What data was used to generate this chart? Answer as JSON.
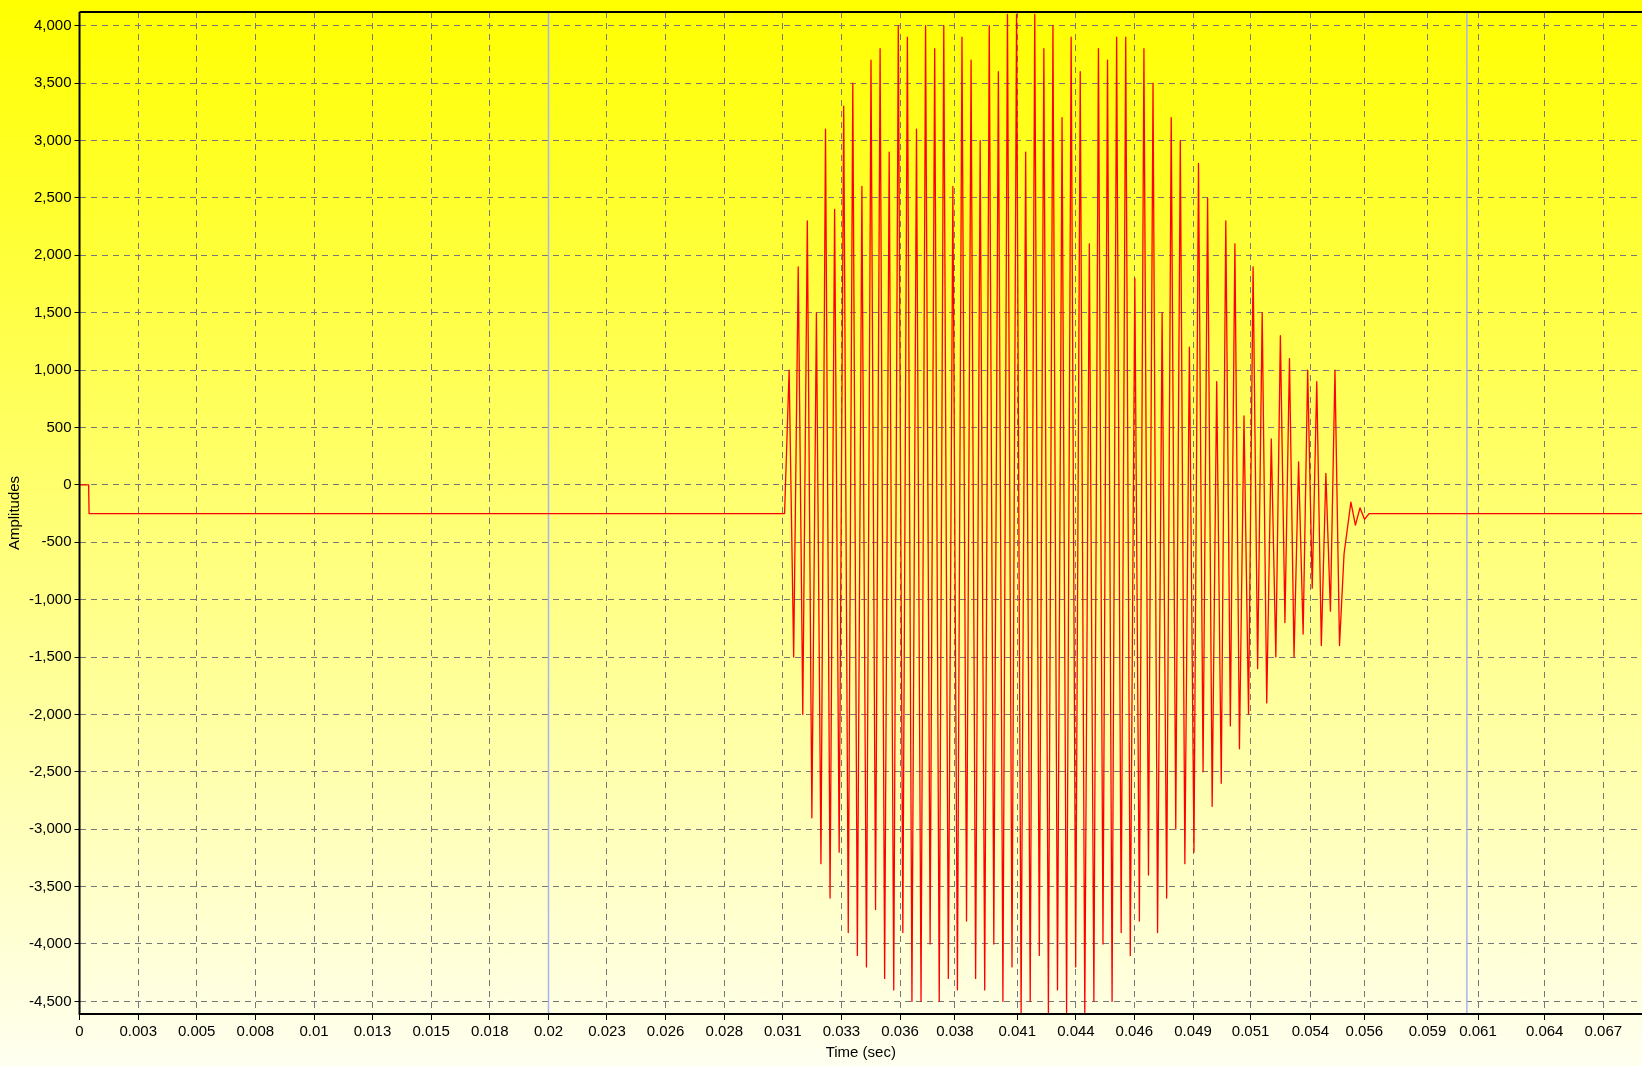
{
  "chart_data": {
    "type": "line",
    "xlabel": "Time (sec)",
    "ylabel": "Amplitudes",
    "grid": true,
    "legend": false,
    "marker": "none",
    "line_style": "solid",
    "xlim": [
      0,
      0.0687
    ],
    "ylim": [
      -4610,
      4120
    ],
    "xticks": [
      {
        "value": 0,
        "label": "0"
      },
      {
        "value": 0.00258,
        "label": "0.003"
      },
      {
        "value": 0.00515,
        "label": "0.005"
      },
      {
        "value": 0.00773,
        "label": "0.008"
      },
      {
        "value": 0.01031,
        "label": "0.01"
      },
      {
        "value": 0.01288,
        "label": "0.013"
      },
      {
        "value": 0.01546,
        "label": "0.015"
      },
      {
        "value": 0.01804,
        "label": "0.018"
      },
      {
        "value": 0.02062,
        "label": "0.02"
      },
      {
        "value": 0.02319,
        "label": "0.023"
      },
      {
        "value": 0.02577,
        "label": "0.026"
      },
      {
        "value": 0.02835,
        "label": "0.028"
      },
      {
        "value": 0.03092,
        "label": "0.031"
      },
      {
        "value": 0.0335,
        "label": "0.033"
      },
      {
        "value": 0.03608,
        "label": "0.036"
      },
      {
        "value": 0.03849,
        "label": "0.038"
      },
      {
        "value": 0.04123,
        "label": "0.041"
      },
      {
        "value": 0.04381,
        "label": "0.044"
      },
      {
        "value": 0.04638,
        "label": "0.046"
      },
      {
        "value": 0.04896,
        "label": "0.049"
      },
      {
        "value": 0.05149,
        "label": "0.051"
      },
      {
        "value": 0.05412,
        "label": "0.054"
      },
      {
        "value": 0.05649,
        "label": "0.056"
      },
      {
        "value": 0.05927,
        "label": "0.059"
      },
      {
        "value": 0.06149,
        "label": "0.061"
      },
      {
        "value": 0.06442,
        "label": "0.064"
      },
      {
        "value": 0.067,
        "label": "0.067"
      }
    ],
    "yticks": [
      {
        "value": 4000,
        "label": "4,000"
      },
      {
        "value": 3500,
        "label": "3,500"
      },
      {
        "value": 3000,
        "label": "3,000"
      },
      {
        "value": 2500,
        "label": "2,500"
      },
      {
        "value": 2000,
        "label": "2,000"
      },
      {
        "value": 1500,
        "label": "1,500"
      },
      {
        "value": 1000,
        "label": "1,000"
      },
      {
        "value": 500,
        "label": "500"
      },
      {
        "value": 0,
        "label": "0"
      },
      {
        "value": -500,
        "label": "-500"
      },
      {
        "value": -1000,
        "label": "-1,000"
      },
      {
        "value": -1500,
        "label": "-1,500"
      },
      {
        "value": -2000,
        "label": "-2,000"
      },
      {
        "value": -2500,
        "label": "-2,500"
      },
      {
        "value": -3000,
        "label": "-3,000"
      },
      {
        "value": -3500,
        "label": "-3,500"
      },
      {
        "value": -4000,
        "label": "-4,000"
      },
      {
        "value": -4500,
        "label": "-4,500"
      }
    ],
    "ref_lines": [
      {
        "axis": "x",
        "value": 0.02062,
        "color": "#a8b4f0"
      },
      {
        "axis": "x",
        "value": 0.061,
        "color": "#a8b4f0"
      }
    ],
    "series": [
      {
        "color": "#ff0000",
        "x": [
          0,
          0.0004,
          0.00042,
          0.031,
          0.0312,
          0.0314,
          0.0316,
          0.0318,
          0.032,
          0.0322,
          0.0324,
          0.0326,
          0.0328,
          0.033,
          0.0332,
          0.0334,
          0.0336,
          0.0338,
          0.034,
          0.0342,
          0.0344,
          0.0346,
          0.0348,
          0.035,
          0.0352,
          0.0354,
          0.0356,
          0.0358,
          0.036,
          0.0362,
          0.0364,
          0.0366,
          0.0368,
          0.037,
          0.0372,
          0.0374,
          0.0376,
          0.0378,
          0.038,
          0.0382,
          0.0384,
          0.0386,
          0.0388,
          0.039,
          0.0392,
          0.0394,
          0.0396,
          0.0398,
          0.04,
          0.0402,
          0.0404,
          0.0406,
          0.0408,
          0.041,
          0.0412,
          0.0414,
          0.0416,
          0.0418,
          0.042,
          0.0422,
          0.0424,
          0.0426,
          0.0428,
          0.043,
          0.0432,
          0.0434,
          0.0436,
          0.0438,
          0.044,
          0.0442,
          0.0444,
          0.0446,
          0.0448,
          0.045,
          0.0452,
          0.0454,
          0.0456,
          0.0458,
          0.046,
          0.0462,
          0.0464,
          0.0466,
          0.0468,
          0.047,
          0.0472,
          0.0474,
          0.0476,
          0.0478,
          0.048,
          0.0482,
          0.0484,
          0.0486,
          0.0488,
          0.049,
          0.0492,
          0.0494,
          0.0496,
          0.0498,
          0.05,
          0.0502,
          0.0504,
          0.0506,
          0.0508,
          0.051,
          0.0512,
          0.0514,
          0.0516,
          0.0518,
          0.052,
          0.0522,
          0.0524,
          0.0526,
          0.0528,
          0.053,
          0.0532,
          0.0534,
          0.0536,
          0.0538,
          0.054,
          0.0542,
          0.0544,
          0.0546,
          0.0548,
          0.055,
          0.0552,
          0.0554,
          0.0556,
          0.0559,
          0.0561,
          0.0563,
          0.0565,
          0.0567,
          0.0687
        ],
        "values": [
          0,
          0,
          -250,
          -250,
          1000,
          -1500,
          1900,
          -2000,
          2300,
          -2900,
          1500,
          -3300,
          3100,
          -3600,
          2400,
          -3200,
          3300,
          -3900,
          3500,
          -4100,
          2600,
          -4200,
          3700,
          -3700,
          3800,
          -4300,
          2900,
          -4400,
          4000,
          -3900,
          3900,
          -4500,
          3100,
          -4500,
          4000,
          -4000,
          3800,
          -4500,
          4000,
          -4300,
          2600,
          -4400,
          3900,
          -3800,
          3700,
          -4300,
          3000,
          -4400,
          4000,
          -4000,
          3600,
          -4500,
          4100,
          -4200,
          4100,
          -4600,
          2900,
          -4500,
          4100,
          -4100,
          3800,
          -4600,
          4000,
          -4400,
          3200,
          -4600,
          3900,
          -4200,
          3600,
          -4600,
          2100,
          -4500,
          3800,
          -4000,
          3700,
          -4500,
          3900,
          -3900,
          3900,
          -4100,
          1800,
          -3800,
          3800,
          -3400,
          3500,
          -3900,
          1500,
          -3600,
          3200,
          -3000,
          3000,
          -3300,
          1200,
          -3200,
          2800,
          -2500,
          2500,
          -2800,
          900,
          -2600,
          2300,
          -2100,
          2100,
          -2300,
          600,
          -2000,
          1900,
          -1600,
          1500,
          -1900,
          400,
          -1500,
          1300,
          -1200,
          1100,
          -1500,
          200,
          -1300,
          1000,
          -900,
          900,
          -1400,
          100,
          -1100,
          1000,
          -1400,
          -600,
          -150,
          -350,
          -200,
          -300,
          -250,
          -250
        ]
      }
    ]
  }
}
